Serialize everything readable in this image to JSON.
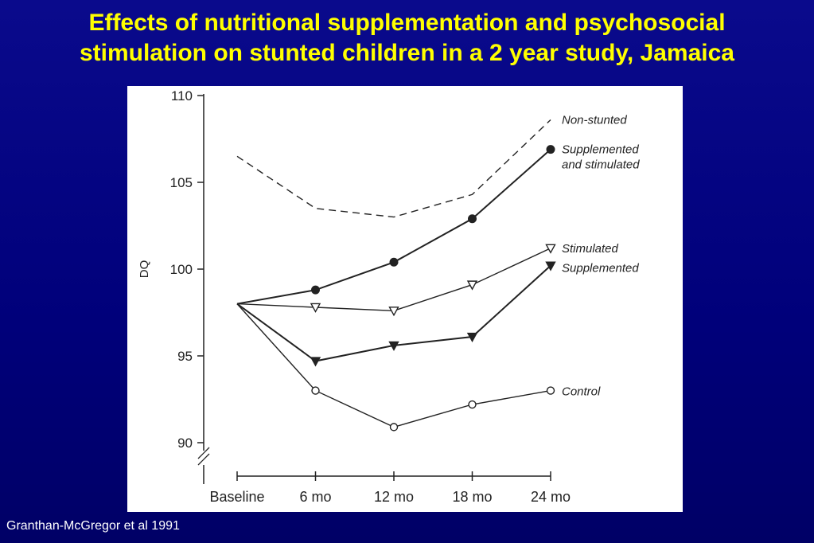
{
  "slide": {
    "title_line1": "Effects of nutritional supplementation and psychosocial",
    "title_line2": "stimulation on stunted children in a 2 year study, Jamaica",
    "citation": "Granthan-McGregor et al 1991"
  },
  "chart_data": {
    "type": "line",
    "title": "",
    "xlabel": "",
    "ylabel": "DQ",
    "categories": [
      "Baseline",
      "6 mo",
      "12 mo",
      "18 mo",
      "24 mo"
    ],
    "ylim": [
      90,
      110
    ],
    "yticks": [
      90,
      95,
      100,
      105,
      110
    ],
    "grid": false,
    "legend": "direct labels at line ends (right)",
    "series": [
      {
        "name": "Non-stunted",
        "values": [
          106.5,
          103.5,
          103.0,
          104.3,
          108.6
        ],
        "marker": "none",
        "style": "dashed"
      },
      {
        "name_line1": "Supplemented",
        "name_line2": "and stimulated",
        "values": [
          98.0,
          98.8,
          100.4,
          102.9,
          106.9
        ],
        "marker": "filled-circle",
        "style": "solid"
      },
      {
        "name": "Stimulated",
        "values": [
          98.0,
          97.8,
          97.6,
          99.1,
          101.2
        ],
        "marker": "open-triangle-down",
        "style": "solid"
      },
      {
        "name": "Supplemented",
        "values": [
          98.0,
          94.7,
          95.6,
          96.1,
          100.2
        ],
        "marker": "filled-triangle-down",
        "style": "solid"
      },
      {
        "name": "Control",
        "values": [
          98.0,
          93.0,
          90.9,
          92.2,
          93.0
        ],
        "marker": "open-circle",
        "style": "solid"
      }
    ]
  },
  "colors": {
    "background": "#00007a",
    "title": "#ffff00",
    "chart_bg": "#ffffff",
    "ink": "#222222"
  }
}
